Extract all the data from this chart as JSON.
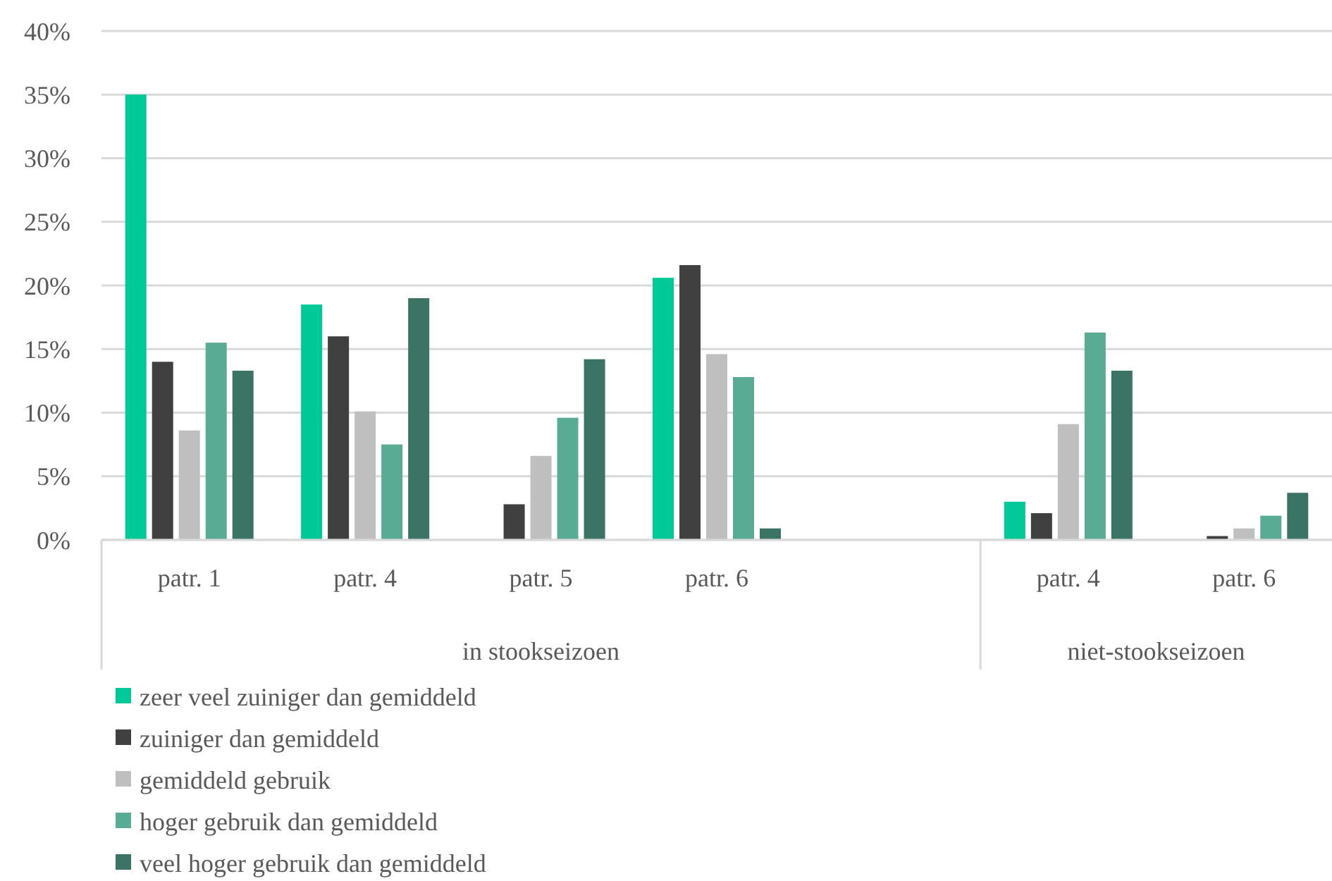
{
  "chart_data": {
    "type": "bar",
    "categories": [
      "patr. 1",
      "patr. 4",
      "patr. 5",
      "patr. 6",
      null,
      "patr. 4",
      "patr. 6"
    ],
    "series": [
      {
        "name": "zeer veel zuiniger dan gemiddeld",
        "color": "#00c896",
        "values": [
          35.0,
          18.5,
          0,
          20.6,
          null,
          3.0,
          0
        ]
      },
      {
        "name": "zuiniger dan gemiddeld",
        "color": "#404040",
        "values": [
          14.0,
          16.0,
          2.8,
          21.6,
          null,
          2.1,
          0.3
        ]
      },
      {
        "name": "gemiddeld gebruik",
        "color": "#bfbfbf",
        "values": [
          8.6,
          10.1,
          6.6,
          14.6,
          null,
          9.1,
          0.9
        ]
      },
      {
        "name": "hoger gebruik dan gemiddeld",
        "color": "#5aab94",
        "values": [
          15.5,
          7.5,
          9.6,
          12.8,
          null,
          16.3,
          1.9
        ]
      },
      {
        "name": "veel hoger gebruik dan gemiddeld",
        "color": "#3b7464",
        "values": [
          13.3,
          19.0,
          14.2,
          0.9,
          null,
          13.3,
          3.7
        ]
      }
    ],
    "ylim": [
      0,
      40
    ],
    "yticks": [
      {
        "value": 0,
        "label": "0%"
      },
      {
        "value": 5,
        "label": "5%"
      },
      {
        "value": 10,
        "label": "10%"
      },
      {
        "value": 15,
        "label": "15%"
      },
      {
        "value": 20,
        "label": "20%"
      },
      {
        "value": 25,
        "label": "25%"
      },
      {
        "value": 30,
        "label": "30%"
      },
      {
        "value": 35,
        "label": "35%"
      },
      {
        "value": 40,
        "label": "40%"
      }
    ],
    "annotations": [
      "in stookseizoen",
      "niet-stookseizoen"
    ],
    "grid": "y",
    "legend": "bottom"
  }
}
